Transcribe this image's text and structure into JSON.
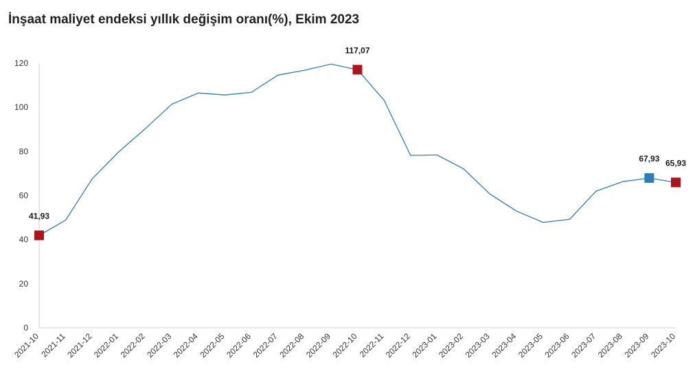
{
  "chart_data": {
    "type": "line",
    "title": "İnşaat maliyet endeksi yıllık değişim oranı(%), Ekim 2023",
    "categories": [
      "2021-10",
      "2021-11",
      "2021-12",
      "2022-01",
      "2022-02",
      "2022-03",
      "2022-04",
      "2022-05",
      "2022-06",
      "2022-07",
      "2022-08",
      "2022-09",
      "2022-10",
      "2022-11",
      "2022-12",
      "2023-01",
      "2023-02",
      "2023-03",
      "2023-04",
      "2023-05",
      "2023-06",
      "2023-07",
      "2023-08",
      "2023-09",
      "2023-10"
    ],
    "values": [
      41.93,
      48.8,
      67.6,
      79.8,
      90.3,
      101.4,
      106.5,
      105.6,
      106.8,
      114.6,
      116.8,
      119.6,
      117.07,
      103.3,
      78.2,
      78.4,
      72.1,
      60.6,
      52.9,
      47.8,
      49.2,
      62.0,
      66.3,
      67.93,
      65.93
    ],
    "ylim": [
      0,
      120
    ],
    "yticks": [
      0,
      20,
      40,
      60,
      80,
      100,
      120
    ],
    "xlabel": "",
    "ylabel": "",
    "grid": false,
    "line_color": "#2e7cb8",
    "highlights": [
      {
        "index": 0,
        "label": "41,93",
        "color": "#b0141b"
      },
      {
        "index": 12,
        "label": "117,07",
        "color": "#b0141b"
      },
      {
        "index": 23,
        "label": "67,93",
        "color": "#2e7cb8"
      },
      {
        "index": 24,
        "label": "65,93",
        "color": "#b0141b"
      }
    ]
  }
}
